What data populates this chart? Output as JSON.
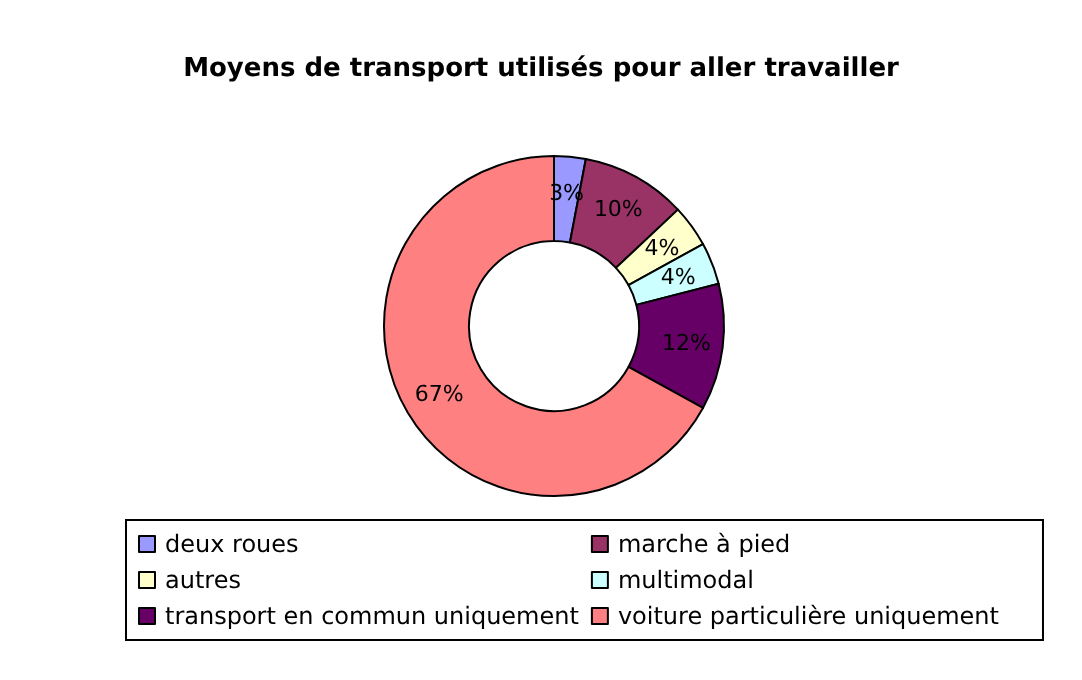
{
  "chart_data": {
    "type": "donut",
    "title": "Moyens de transport utilisés pour aller travailler",
    "categories": [
      "deux roues",
      "marche à pied",
      "autres",
      "multimodal",
      "transport en commun uniquement",
      "voiture particulière uniquement"
    ],
    "values": [
      3,
      10,
      4,
      4,
      12,
      67
    ],
    "value_labels": [
      "3%",
      "10%",
      "4%",
      "4%",
      "12%",
      "67%"
    ],
    "colors": [
      "#9999ff",
      "#993366",
      "#ffffcc",
      "#ccffff",
      "#660066",
      "#ff8080"
    ],
    "legend": "bottom"
  }
}
